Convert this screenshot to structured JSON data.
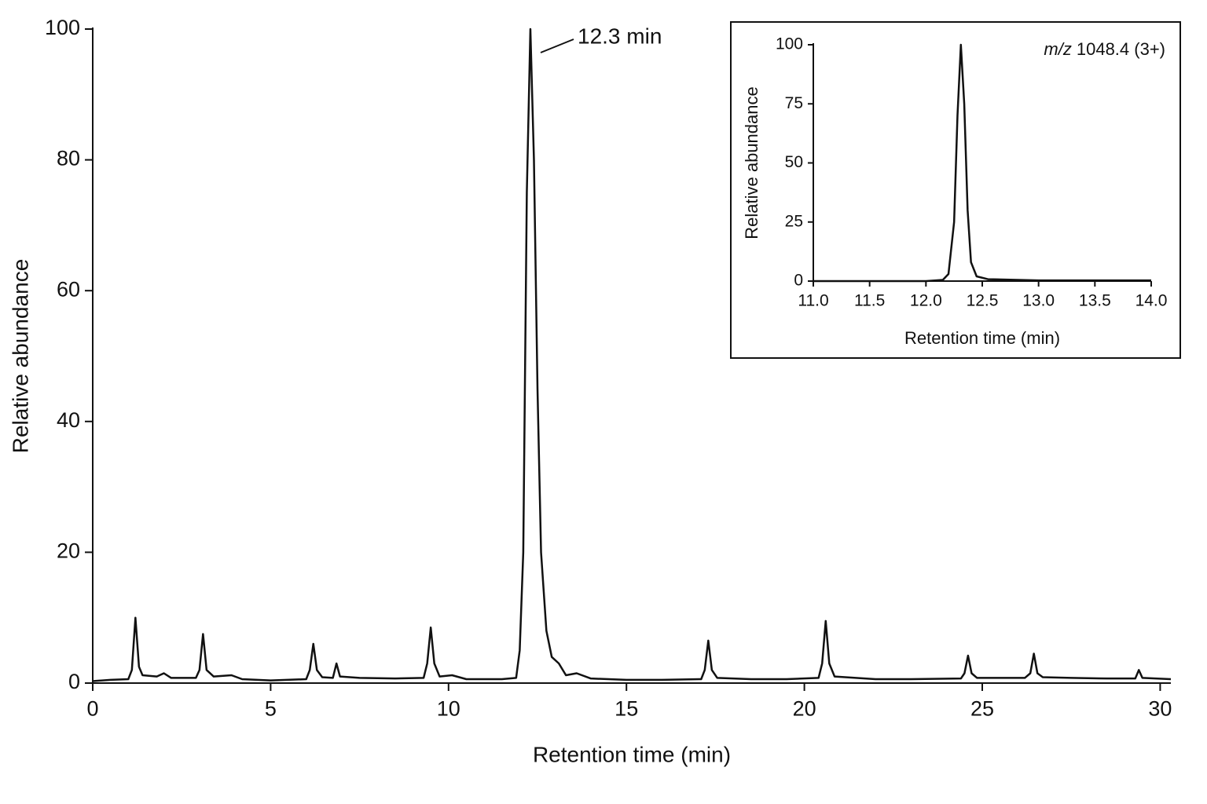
{
  "chart_data": [
    {
      "type": "line",
      "x_label": "Retention time (min)",
      "y_label": "Relative abundance",
      "annotation": "12.3 min",
      "color": "#111111",
      "xlim": [
        0,
        30.3
      ],
      "ylim": [
        0,
        100
      ],
      "xticks": [
        0,
        5,
        10,
        15,
        20,
        25,
        30
      ],
      "yticks": [
        0,
        20,
        40,
        60,
        80,
        100
      ],
      "x": [
        0,
        0.5,
        1.0,
        1.1,
        1.2,
        1.3,
        1.4,
        1.8,
        2.0,
        2.2,
        2.9,
        3.0,
        3.1,
        3.2,
        3.4,
        3.9,
        4.2,
        5.0,
        6.0,
        6.1,
        6.2,
        6.3,
        6.45,
        6.75,
        6.85,
        6.95,
        7.5,
        8.5,
        9.3,
        9.4,
        9.5,
        9.6,
        9.75,
        10.1,
        10.5,
        11.5,
        11.9,
        12.0,
        12.1,
        12.2,
        12.3,
        12.4,
        12.5,
        12.6,
        12.75,
        12.9,
        13.1,
        13.3,
        13.6,
        14.0,
        15,
        16,
        17.1,
        17.2,
        17.3,
        17.4,
        17.55,
        18.5,
        19.5,
        20.4,
        20.5,
        20.6,
        20.7,
        20.85,
        22,
        23,
        24.4,
        24.5,
        24.6,
        24.7,
        24.85,
        26.2,
        26.35,
        26.45,
        26.55,
        26.7,
        27.5,
        28.5,
        29.3,
        29.4,
        29.5,
        30.3
      ],
      "values": [
        0.3,
        0.5,
        0.6,
        2,
        10,
        2.5,
        1.2,
        1,
        1.5,
        0.8,
        0.8,
        2,
        7.5,
        2,
        1,
        1.2,
        0.6,
        0.4,
        0.6,
        2,
        6,
        2,
        0.9,
        0.8,
        3,
        1,
        0.8,
        0.7,
        0.8,
        3,
        8.5,
        3,
        1,
        1.2,
        0.6,
        0.6,
        0.8,
        5,
        20,
        75,
        100,
        80,
        45,
        20,
        8,
        4,
        3,
        1.2,
        1.5,
        0.7,
        0.5,
        0.5,
        0.6,
        2,
        6.5,
        2,
        0.8,
        0.6,
        0.6,
        0.8,
        3,
        9.5,
        3,
        1,
        0.6,
        0.6,
        0.7,
        1.5,
        4.2,
        1.5,
        0.8,
        0.8,
        1.5,
        4.5,
        1.5,
        0.9,
        0.8,
        0.7,
        0.7,
        2,
        0.8,
        0.6
      ]
    },
    {
      "type": "line",
      "x_label": "Retention time (min)",
      "y_label": "Relative abundance",
      "annotation": {
        "italic": "m/z",
        "text": "1048.4 (3+)"
      },
      "color": "#111111",
      "xlim": [
        11,
        14
      ],
      "ylim": [
        0,
        100
      ],
      "xticks": [
        {
          "value": 11,
          "label": "11.0"
        },
        {
          "value": 11.5,
          "label": "11.5"
        },
        {
          "value": 12,
          "label": "12.0"
        },
        {
          "value": 12.5,
          "label": "12.5"
        },
        {
          "value": 13,
          "label": "13.0"
        },
        {
          "value": 13.5,
          "label": "13.5"
        },
        {
          "value": 14,
          "label": "14.0"
        }
      ],
      "yticks": [
        0,
        25,
        50,
        75,
        100
      ],
      "x": [
        11.0,
        11.5,
        12.0,
        12.15,
        12.2,
        12.25,
        12.28,
        12.31,
        12.34,
        12.37,
        12.4,
        12.45,
        12.55,
        13.0,
        13.5,
        14.0
      ],
      "values": [
        0,
        0,
        0,
        0.5,
        3,
        25,
        70,
        100,
        75,
        30,
        8,
        2,
        0.8,
        0.3,
        0.3,
        0.3
      ]
    }
  ]
}
